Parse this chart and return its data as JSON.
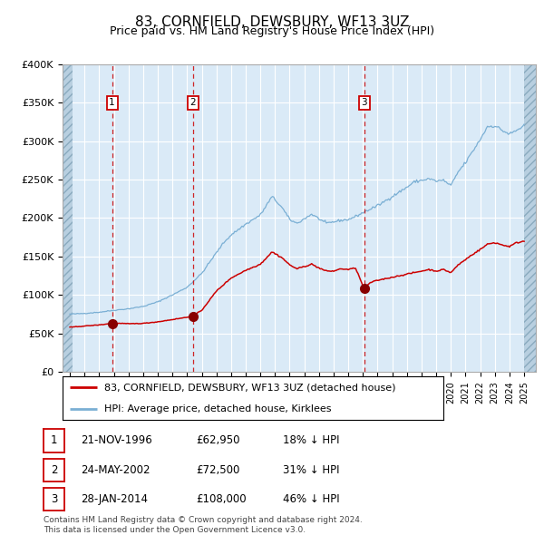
{
  "title": "83, CORNFIELD, DEWSBURY, WF13 3UZ",
  "subtitle": "Price paid vs. HM Land Registry's House Price Index (HPI)",
  "plot_bg_color": "#daeaf7",
  "hatch_face_color": "#b8cfe0",
  "red_line_color": "#cc0000",
  "blue_line_color": "#7aafd4",
  "sale_years_dec": [
    1996.88,
    2002.4,
    2014.08
  ],
  "sale_prices": [
    62950,
    72500,
    108000
  ],
  "sale_labels": [
    "1",
    "2",
    "3"
  ],
  "sale_info": [
    {
      "label": "1",
      "date": "21-NOV-1996",
      "price": "£62,950",
      "pct": "18% ↓ HPI"
    },
    {
      "label": "2",
      "date": "24-MAY-2002",
      "price": "£72,500",
      "pct": "31% ↓ HPI"
    },
    {
      "label": "3",
      "date": "28-JAN-2014",
      "price": "£108,000",
      "pct": "46% ↓ HPI"
    }
  ],
  "legend_line1": "83, CORNFIELD, DEWSBURY, WF13 3UZ (detached house)",
  "legend_line2": "HPI: Average price, detached house, Kirklees",
  "footer": "Contains HM Land Registry data © Crown copyright and database right 2024.\nThis data is licensed under the Open Government Licence v3.0.",
  "ylim": [
    0,
    400000
  ],
  "yticks": [
    0,
    50000,
    100000,
    150000,
    200000,
    250000,
    300000,
    350000,
    400000
  ],
  "ytick_labels": [
    "£0",
    "£50K",
    "£100K",
    "£150K",
    "£200K",
    "£250K",
    "£300K",
    "£350K",
    "£400K"
  ],
  "xlim": [
    1993.5,
    2025.8
  ],
  "hpi_waypoints": {
    "1994.0": 75000,
    "1995.0": 76000,
    "1996.0": 77500,
    "1997.0": 80000,
    "1998.0": 82000,
    "1999.0": 85000,
    "2000.0": 91000,
    "2001.0": 100000,
    "2002.0": 110000,
    "2003.0": 128000,
    "2004.0": 155000,
    "2004.5": 168000,
    "2005.0": 178000,
    "2006.0": 192000,
    "2007.0": 204000,
    "2007.8": 228000,
    "2008.5": 213000,
    "2009.0": 198000,
    "2009.5": 193000,
    "2010.0": 199000,
    "2010.5": 205000,
    "2011.0": 199000,
    "2011.5": 193000,
    "2012.0": 195000,
    "2012.5": 197000,
    "2013.0": 198000,
    "2013.5": 202000,
    "2014.0": 207000,
    "2015.0": 216000,
    "2016.0": 228000,
    "2017.0": 240000,
    "2017.5": 247000,
    "2018.0": 249000,
    "2018.5": 251000,
    "2019.0": 248000,
    "2019.5": 249000,
    "2020.0": 242000,
    "2020.5": 260000,
    "2021.0": 272000,
    "2021.5": 287000,
    "2022.0": 302000,
    "2022.5": 319000,
    "2023.0": 320000,
    "2023.5": 314000,
    "2024.0": 309000,
    "2024.5": 314000,
    "2025.0": 320000
  },
  "prop_waypoints": {
    "1994.0": 58000,
    "1995.0": 59500,
    "1996.0": 61000,
    "1996.88": 62950,
    "1997.5": 63000,
    "1998.0": 62500,
    "1999.0": 63000,
    "2000.0": 65000,
    "2001.0": 68000,
    "2002.0": 71000,
    "2002.4": 72500,
    "2003.0": 80000,
    "2004.0": 105000,
    "2005.0": 122000,
    "2006.0": 132000,
    "2007.0": 140000,
    "2007.8": 156000,
    "2008.5": 148000,
    "2009.0": 139000,
    "2009.5": 134000,
    "2010.0": 137000,
    "2010.5": 140000,
    "2011.0": 135000,
    "2011.5": 131000,
    "2012.0": 131000,
    "2012.5": 134000,
    "2013.0": 133000,
    "2013.5": 135000,
    "2014.08": 108000,
    "2014.5": 116000,
    "2015.0": 119000,
    "2015.5": 121000,
    "2016.0": 123000,
    "2016.5": 125000,
    "2017.0": 127000,
    "2017.5": 129000,
    "2018.0": 131000,
    "2018.5": 133000,
    "2019.0": 131000,
    "2019.5": 133000,
    "2020.0": 129000,
    "2020.5": 139000,
    "2021.0": 146000,
    "2021.5": 153000,
    "2022.0": 159000,
    "2022.5": 166000,
    "2023.0": 168000,
    "2023.5": 165000,
    "2024.0": 163000,
    "2024.5": 168000,
    "2025.0": 170000
  }
}
